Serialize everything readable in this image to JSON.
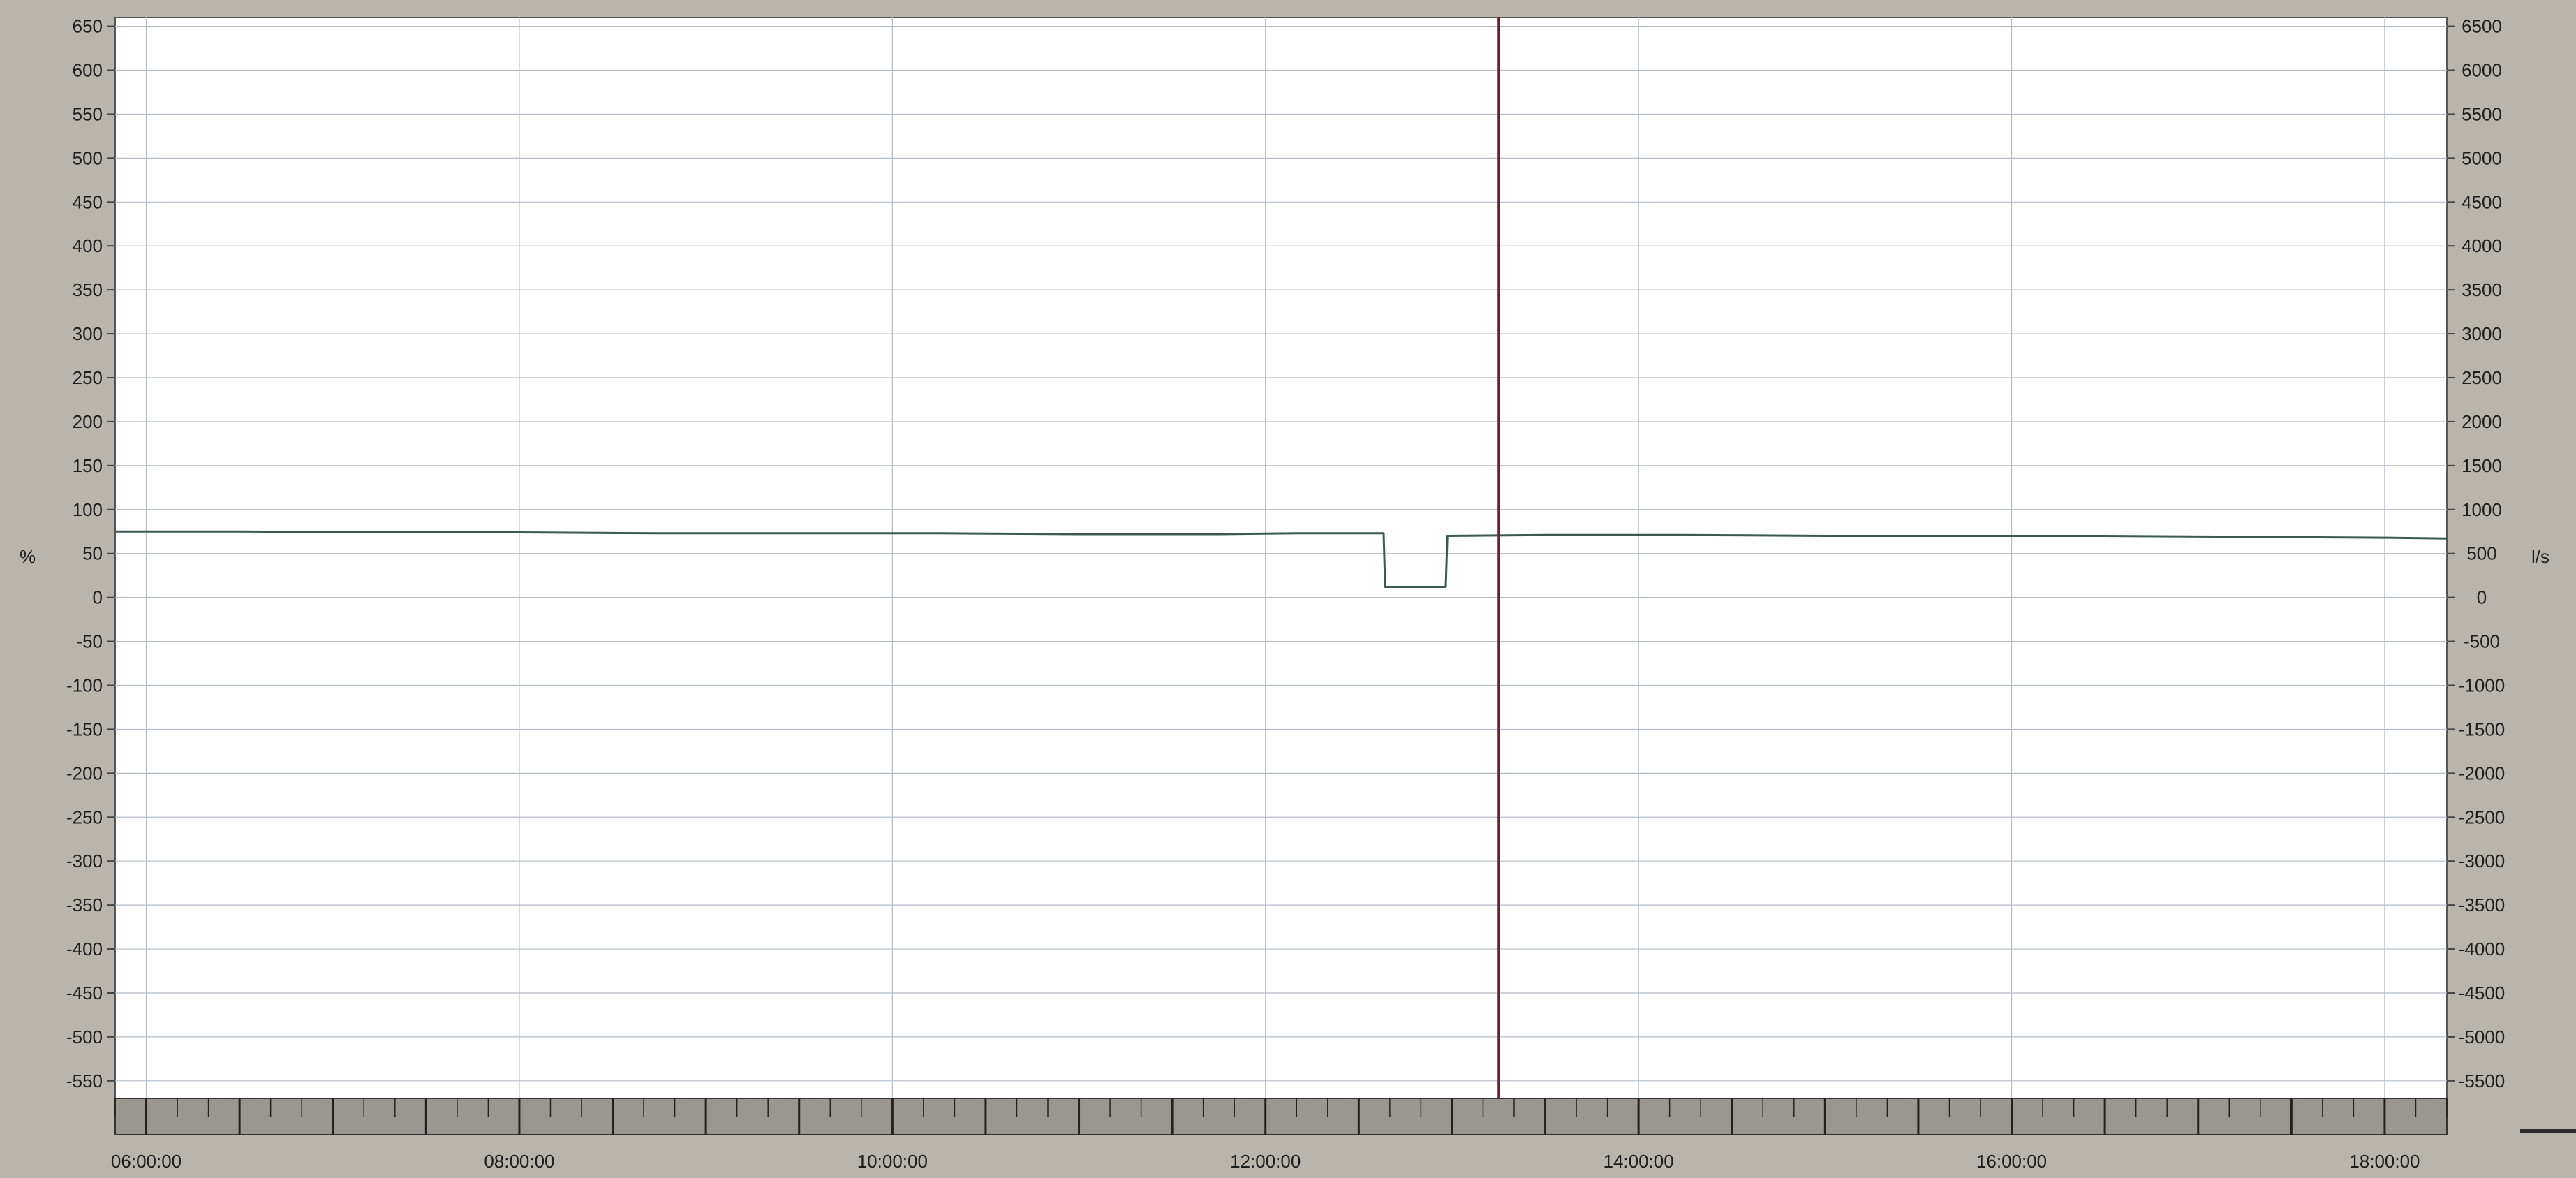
{
  "chart_data": {
    "type": "line",
    "title": "",
    "left_axis": {
      "unit": "%",
      "ylim": [
        -570,
        660
      ],
      "ticks": [
        650,
        600,
        550,
        500,
        450,
        400,
        350,
        300,
        250,
        200,
        150,
        100,
        50,
        0,
        -50,
        -100,
        -150,
        -200,
        -250,
        -300,
        -350,
        -400,
        -450,
        -500,
        -550
      ]
    },
    "right_axis": {
      "unit": "l/s",
      "ylim": [
        -5700,
        6600
      ],
      "ticks": [
        6500,
        6000,
        5500,
        5000,
        4500,
        4000,
        3500,
        3000,
        2500,
        2000,
        1500,
        1000,
        500,
        0,
        -500,
        -1000,
        -1500,
        -2000,
        -2500,
        -3000,
        -3500,
        -4000,
        -4500,
        -5000,
        -5500
      ]
    },
    "x_axis": {
      "xlim": [
        "05:50:00",
        "18:20:00"
      ],
      "tick_labels": [
        "06:00:00",
        "08:00:00",
        "10:00:00",
        "12:00:00",
        "14:00:00",
        "16:00:00",
        "18:00:00"
      ]
    },
    "cursor": {
      "time": "13:15:00",
      "color": "#7a1830"
    },
    "grid": true,
    "series": [
      {
        "color": "#3c5a4f",
        "x": [
          "05:50:00",
          "06:30:00",
          "07:15:00",
          "08:00:00",
          "08:45:00",
          "09:30:00",
          "10:15:00",
          "11:00:00",
          "11:45:00",
          "12:10:00",
          "12:38:00",
          "12:38:30",
          "12:58:00",
          "12:58:30",
          "13:30:00",
          "14:15:00",
          "15:00:00",
          "15:45:00",
          "16:30:00",
          "17:15:00",
          "18:00:00",
          "18:20:00"
        ],
        "y": [
          75,
          75,
          74,
          74,
          73,
          73,
          73,
          72,
          72,
          73,
          73,
          12,
          12,
          70,
          71,
          71,
          70,
          70,
          70,
          69,
          68,
          67
        ]
      }
    ]
  }
}
